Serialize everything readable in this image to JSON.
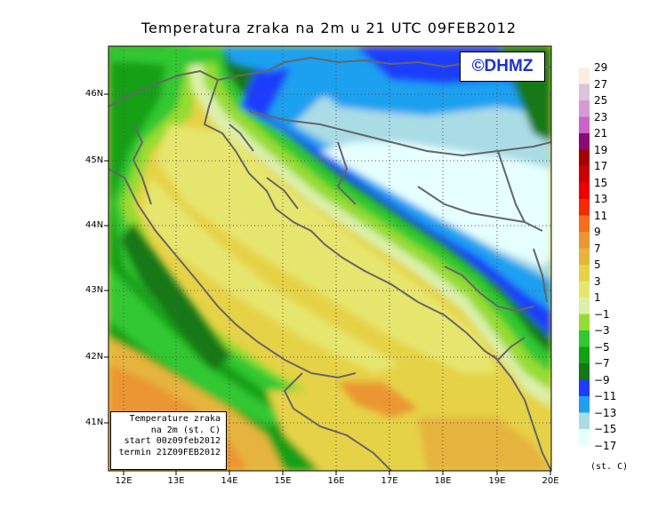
{
  "title": "Temperatura zraka na 2m u 21 UTC 09FEB2012",
  "brand": "©DHMZ",
  "info_box": {
    "line1": "Temperature zraka",
    "line2": "na 2m (st. C)",
    "line3": "start 00z09feb2012",
    "line4": "termin 21Z09FEB2012"
  },
  "latitude_labels": [
    "46N",
    "45N",
    "44N",
    "43N",
    "42N",
    "41N"
  ],
  "longitude_labels": [
    "12E",
    "13E",
    "14E",
    "15E",
    "16E",
    "17E",
    "18E",
    "19E",
    "20E"
  ],
  "legend": {
    "labels": [
      "29",
      "27",
      "25",
      "23",
      "21",
      "19",
      "17",
      "15",
      "13",
      "11",
      "9",
      "7",
      "5",
      "3",
      "1",
      "−1",
      "−3",
      "−5",
      "−7",
      "−9",
      "−11",
      "−13",
      "−15",
      "−17"
    ],
    "colors": [
      "#fbeee0",
      "#dcc3dc",
      "#d69ad4",
      "#c864c8",
      "#8c0a78",
      "#a50000",
      "#cd0000",
      "#f00000",
      "#f52a00",
      "#f56e1e",
      "#eb9632",
      "#e6b43c",
      "#e6d246",
      "#e6e66e",
      "#dcf0aa",
      "#96dc32",
      "#32c832",
      "#14a014",
      "#147814",
      "#1e3cff",
      "#1ea0f0",
      "#aadce6",
      "#e6ffff"
    ],
    "unit": "(st. C)"
  }
}
